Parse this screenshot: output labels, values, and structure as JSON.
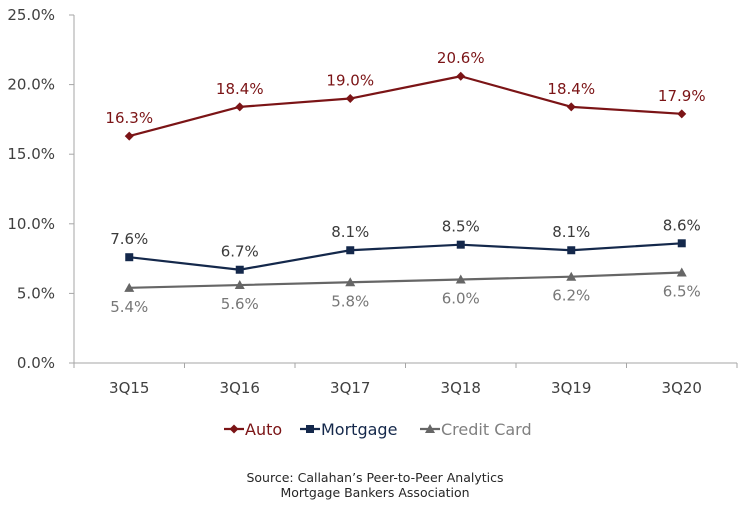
{
  "chart_data": {
    "type": "line",
    "title": "",
    "xlabel": "",
    "ylabel": "",
    "categories": [
      "3Q15",
      "3Q16",
      "3Q17",
      "3Q18",
      "3Q19",
      "3Q20"
    ],
    "ylim": [
      0,
      25
    ],
    "yticks": [
      0,
      5,
      10,
      15,
      20,
      25
    ],
    "ytick_labels": [
      "0.0%",
      "5.0%",
      "10.0%",
      "15.0%",
      "20.0%",
      "25.0%"
    ],
    "grid": false,
    "legend_position": "bottom",
    "series": [
      {
        "name": "Auto",
        "color": "#7b1416",
        "marker": "diamond",
        "label_position": "above",
        "values": [
          16.3,
          18.4,
          19.0,
          20.6,
          18.4,
          17.9
        ],
        "labels": [
          "16.3%",
          "18.4%",
          "19.0%",
          "20.6%",
          "18.4%",
          "17.9%"
        ]
      },
      {
        "name": "Mortgage",
        "color": "#14284b",
        "marker": "square",
        "label_color": "#3b3b3b",
        "label_position": "above",
        "values": [
          7.6,
          6.7,
          8.1,
          8.5,
          8.1,
          8.6
        ],
        "labels": [
          "7.6%",
          "6.7%",
          "8.1%",
          "8.5%",
          "8.1%",
          "8.6%"
        ]
      },
      {
        "name": "Credit Card",
        "color": "#666666",
        "marker": "triangle",
        "label_color": "#777777",
        "label_position": "below",
        "values": [
          5.4,
          5.6,
          5.8,
          6.0,
          6.2,
          6.5
        ],
        "labels": [
          "5.4%",
          "5.6%",
          "5.8%",
          "6.0%",
          "6.2%",
          "6.5%"
        ]
      }
    ],
    "annotations": [
      "Source: Callahan’s Peer-to-Peer Analytics",
      "Mortgage Bankers Association"
    ]
  }
}
